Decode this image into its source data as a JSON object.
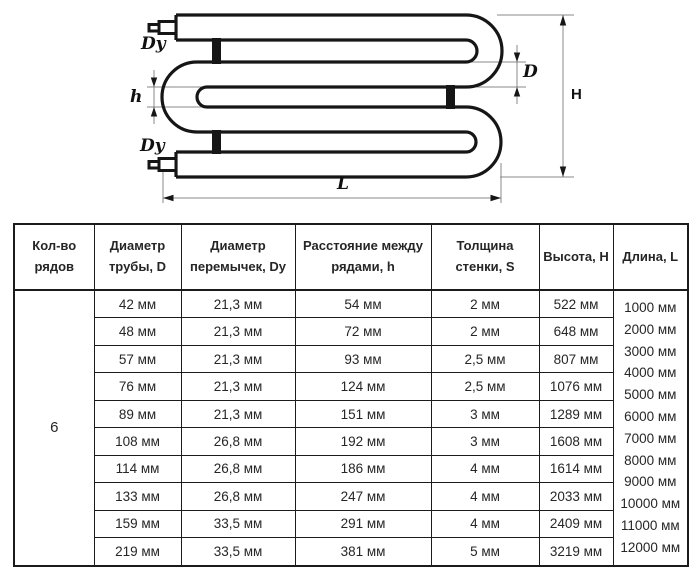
{
  "colors": {
    "ink": "#161616",
    "dim_line": "#8a8a8a",
    "background": "#ffffff"
  },
  "diagram": {
    "description": "serpentine-pipe-register-drawing",
    "labels": {
      "dy_top": "Dy",
      "dy_bottom": "Dy",
      "h": "h",
      "d": "D",
      "height": "H",
      "length": "L"
    }
  },
  "table": {
    "headers": [
      "Кол-во рядов",
      "Диаметр трубы, D",
      "Диаметр перемычек, Dy",
      "Расстояние между рядами, h",
      "Толщина стенки, S",
      "Высота, H",
      "Длина, L"
    ],
    "row_count_value": "6",
    "rows": [
      {
        "d": "42 мм",
        "dy": "21,3 мм",
        "h": "54 мм",
        "s": "2 мм",
        "height": "522 мм"
      },
      {
        "d": "48 мм",
        "dy": "21,3 мм",
        "h": "72 мм",
        "s": "2 мм",
        "height": "648 мм"
      },
      {
        "d": "57 мм",
        "dy": "21,3 мм",
        "h": "93 мм",
        "s": "2,5 мм",
        "height": "807 мм"
      },
      {
        "d": "76 мм",
        "dy": "21,3 мм",
        "h": "124 мм",
        "s": "2,5 мм",
        "height": "1076 мм"
      },
      {
        "d": "89 мм",
        "dy": "21,3 мм",
        "h": "151 мм",
        "s": "3 мм",
        "height": "1289 мм"
      },
      {
        "d": "108 мм",
        "dy": "26,8 мм",
        "h": "192 мм",
        "s": "3 мм",
        "height": "1608 мм"
      },
      {
        "d": "114 мм",
        "dy": "26,8 мм",
        "h": "186 мм",
        "s": "4 мм",
        "height": "1614 мм"
      },
      {
        "d": "133 мм",
        "dy": "26,8 мм",
        "h": "247 мм",
        "s": "4 мм",
        "height": "2033 мм"
      },
      {
        "d": "159 мм",
        "dy": "33,5 мм",
        "h": "291 мм",
        "s": "4 мм",
        "height": "2409 мм"
      },
      {
        "d": "219 мм",
        "dy": "33,5 мм",
        "h": "381 мм",
        "s": "5 мм",
        "height": "3219 мм"
      }
    ],
    "length_values": [
      "1000 мм",
      "2000 мм",
      "3000 мм",
      "4000 мм",
      "5000 мм",
      "6000 мм",
      "7000 мм",
      "8000 мм",
      "9000 мм",
      "10000 мм",
      "11000 мм",
      "12000 мм"
    ]
  }
}
